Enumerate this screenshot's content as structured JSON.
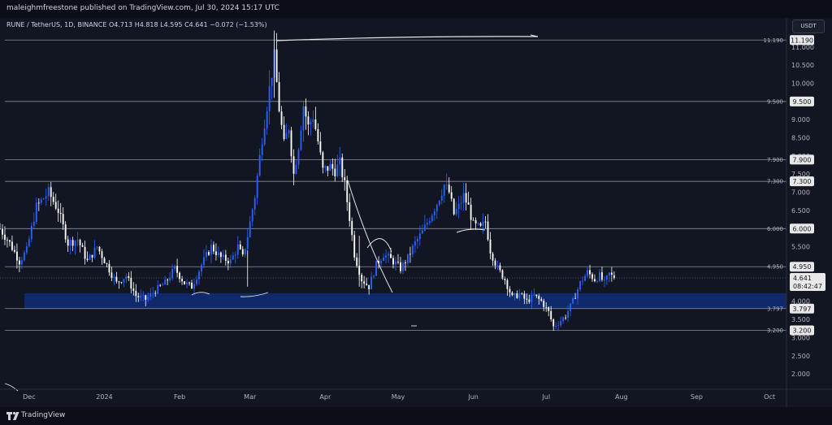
{
  "header": {
    "publisher_line": "maleighmfreestone published on TradingView.com, Jul 30, 2024 15:17 UTC"
  },
  "symbol": {
    "name": "RUNE / TetherUS, 1D, BINANCE",
    "open": "O4.713",
    "high": "H4.818",
    "low": "L4.595",
    "close": "C4.641",
    "change": "−0.072 (−1.53%)"
  },
  "currency_button": "USDT",
  "footer": {
    "brand": "TradingView"
  },
  "colors": {
    "background": "#121622",
    "up_candle": "#2962ff",
    "down_candle": "#ffffff",
    "zone": "#10296b",
    "level_line": "#8a8e99",
    "drawing": "#e6e6e6"
  },
  "chart_data": {
    "type": "candlestick",
    "symbol": "RUNE/USDT",
    "timeframe": "1D",
    "ylim": [
      1.6,
      11.8
    ],
    "y_ticks": [
      "2.000",
      "2.500",
      "3.000",
      "3.500",
      "4.000",
      "4.500",
      "5.000",
      "5.500",
      "6.000",
      "6.500",
      "7.000",
      "7.500",
      "8.000",
      "8.500",
      "9.000",
      "9.500",
      "10.000",
      "10.500",
      "11.000"
    ],
    "x_ticks": [
      {
        "label": "Dec",
        "day": 0
      },
      {
        "label": "2024",
        "day": 31
      },
      {
        "label": "Feb",
        "day": 62
      },
      {
        "label": "Mar",
        "day": 91
      },
      {
        "label": "Apr",
        "day": 122
      },
      {
        "label": "May",
        "day": 152
      },
      {
        "label": "Jun",
        "day": 183
      },
      {
        "label": "Jul",
        "day": 213
      },
      {
        "label": "Aug",
        "day": 244
      },
      {
        "label": "Sep",
        "day": 275
      },
      {
        "label": "Oct",
        "day": 305
      }
    ],
    "x_domain_days": [
      -12,
      312
    ],
    "last_day": 241,
    "horizontal_levels": [
      {
        "price": 11.19,
        "label": "11.190"
      },
      {
        "price": 9.5,
        "label": "9.500"
      },
      {
        "price": 7.9,
        "label": "7.900"
      },
      {
        "price": 7.3,
        "label": "7.300"
      },
      {
        "price": 6.0,
        "label": "6.000"
      },
      {
        "price": 4.95,
        "label": "4.950"
      },
      {
        "price": 3.797,
        "label": "3.797"
      },
      {
        "price": 3.2,
        "label": "3.200"
      }
    ],
    "zone": {
      "from_day": -2,
      "to_day": 312,
      "low": 3.797,
      "high": 4.22
    },
    "current_price": {
      "value": "4.641",
      "countdown": "08:42:47"
    },
    "close_anchors": [
      {
        "day": -12,
        "close": 6.0
      },
      {
        "day": -8,
        "close": 5.6
      },
      {
        "day": -4,
        "close": 5.1
      },
      {
        "day": -1,
        "close": 5.4
      },
      {
        "day": 3,
        "close": 6.6
      },
      {
        "day": 8,
        "close": 7.0
      },
      {
        "day": 12,
        "close": 6.5
      },
      {
        "day": 16,
        "close": 5.6
      },
      {
        "day": 20,
        "close": 5.7
      },
      {
        "day": 24,
        "close": 5.1
      },
      {
        "day": 28,
        "close": 5.5
      },
      {
        "day": 32,
        "close": 5.0
      },
      {
        "day": 36,
        "close": 4.5
      },
      {
        "day": 40,
        "close": 4.7
      },
      {
        "day": 44,
        "close": 4.15
      },
      {
        "day": 48,
        "close": 4.05
      },
      {
        "day": 52,
        "close": 4.3
      },
      {
        "day": 56,
        "close": 4.5
      },
      {
        "day": 60,
        "close": 4.9
      },
      {
        "day": 64,
        "close": 4.5
      },
      {
        "day": 67,
        "close": 4.4
      },
      {
        "day": 71,
        "close": 5.0
      },
      {
        "day": 75,
        "close": 5.5
      },
      {
        "day": 79,
        "close": 5.2
      },
      {
        "day": 83,
        "close": 5.1
      },
      {
        "day": 86,
        "close": 5.5
      },
      {
        "day": 88,
        "close": 5.2
      },
      {
        "day": 90,
        "close": 5.8
      },
      {
        "day": 93,
        "close": 6.9
      },
      {
        "day": 96,
        "close": 8.5
      },
      {
        "day": 100,
        "close": 10.3
      },
      {
        "day": 101,
        "close": 10.7
      },
      {
        "day": 103,
        "close": 9.3
      },
      {
        "day": 105,
        "close": 8.3
      },
      {
        "day": 107,
        "close": 8.8
      },
      {
        "day": 109,
        "close": 7.5
      },
      {
        "day": 111,
        "close": 8.3
      },
      {
        "day": 113,
        "close": 9.4
      },
      {
        "day": 115,
        "close": 8.8
      },
      {
        "day": 117,
        "close": 9.1
      },
      {
        "day": 119,
        "close": 8.4
      },
      {
        "day": 121,
        "close": 7.6
      },
      {
        "day": 124,
        "close": 7.7
      },
      {
        "day": 126,
        "close": 7.6
      },
      {
        "day": 128,
        "close": 7.8
      },
      {
        "day": 130,
        "close": 7.2
      },
      {
        "day": 132,
        "close": 6.3
      },
      {
        "day": 134,
        "close": 5.3
      },
      {
        "day": 137,
        "close": 4.6
      },
      {
        "day": 140,
        "close": 4.4
      },
      {
        "day": 143,
        "close": 5.0
      },
      {
        "day": 146,
        "close": 5.3
      },
      {
        "day": 150,
        "close": 5.1
      },
      {
        "day": 153,
        "close": 4.9
      },
      {
        "day": 156,
        "close": 5.2
      },
      {
        "day": 159,
        "close": 5.6
      },
      {
        "day": 162,
        "close": 5.9
      },
      {
        "day": 165,
        "close": 6.3
      },
      {
        "day": 168,
        "close": 6.7
      },
      {
        "day": 171,
        "close": 7.2
      },
      {
        "day": 173,
        "close": 7.0
      },
      {
        "day": 175,
        "close": 6.4
      },
      {
        "day": 177,
        "close": 6.6
      },
      {
        "day": 179,
        "close": 6.9
      },
      {
        "day": 181,
        "close": 6.6
      },
      {
        "day": 183,
        "close": 6.1
      },
      {
        "day": 186,
        "close": 6.0
      },
      {
        "day": 188,
        "close": 6.2
      },
      {
        "day": 190,
        "close": 5.4
      },
      {
        "day": 193,
        "close": 4.9
      },
      {
        "day": 196,
        "close": 4.6
      },
      {
        "day": 199,
        "close": 4.1
      },
      {
        "day": 202,
        "close": 4.2
      },
      {
        "day": 205,
        "close": 4.0
      },
      {
        "day": 208,
        "close": 4.15
      },
      {
        "day": 211,
        "close": 4.0
      },
      {
        "day": 214,
        "close": 3.7
      },
      {
        "day": 216,
        "close": 3.3
      },
      {
        "day": 218,
        "close": 3.4
      },
      {
        "day": 221,
        "close": 3.6
      },
      {
        "day": 224,
        "close": 4.0
      },
      {
        "day": 227,
        "close": 4.5
      },
      {
        "day": 230,
        "close": 4.8
      },
      {
        "day": 233,
        "close": 4.6
      },
      {
        "day": 235,
        "close": 4.7
      },
      {
        "day": 237,
        "close": 4.5
      },
      {
        "day": 239,
        "close": 4.75
      },
      {
        "day": 241,
        "close": 4.641
      }
    ]
  }
}
